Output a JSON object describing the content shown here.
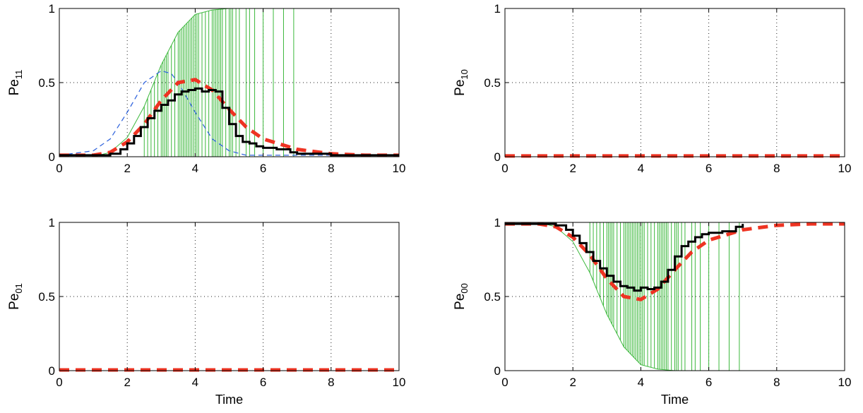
{
  "chart_data": [
    {
      "type": "line",
      "ylabel_base": "Pe",
      "ylabel_sub": "11",
      "xlabel": "",
      "xlim": [
        0,
        10
      ],
      "ylim": [
        0,
        1
      ],
      "xticks": [
        "0",
        "2",
        "4",
        "6",
        "8",
        "10"
      ],
      "yticks": [
        "0",
        "0.5",
        "1"
      ],
      "grid": true,
      "series": [
        {
          "style": "green-envelope",
          "color": "#3cb83c",
          "x": [
            0,
            1,
            1.5,
            2,
            2.5,
            3,
            3.5,
            4,
            4.5,
            5,
            5.5,
            6,
            7
          ],
          "y": [
            0,
            0,
            0.03,
            0.13,
            0.34,
            0.62,
            0.84,
            0.96,
            0.99,
            1,
            1,
            1,
            1
          ]
        },
        {
          "style": "blue-dashed",
          "color": "#3366dd",
          "x": [
            0,
            1,
            1.5,
            2,
            2.5,
            3,
            3.3,
            3.5,
            4,
            4.5,
            5,
            5.5,
            6,
            10
          ],
          "y": [
            0.01,
            0.04,
            0.12,
            0.3,
            0.5,
            0.58,
            0.56,
            0.5,
            0.3,
            0.12,
            0.04,
            0.01,
            0.01,
            0.01
          ]
        },
        {
          "style": "red-dashed",
          "color": "#ee3322",
          "x": [
            0,
            1,
            1.5,
            2,
            2.5,
            3,
            3.5,
            4,
            4.5,
            5,
            5.5,
            6,
            7,
            8,
            9,
            10
          ],
          "y": [
            0.01,
            0.01,
            0.03,
            0.1,
            0.22,
            0.38,
            0.5,
            0.52,
            0.45,
            0.32,
            0.2,
            0.12,
            0.05,
            0.02,
            0.01,
            0.01
          ]
        },
        {
          "style": "black-step",
          "color": "#000000",
          "x": [
            0,
            1.5,
            1.8,
            2,
            2.2,
            2.4,
            2.6,
            2.8,
            3,
            3.2,
            3.4,
            3.6,
            3.8,
            4,
            4.2,
            4.4,
            4.6,
            4.8,
            5,
            5.2,
            5.4,
            5.6,
            5.8,
            6,
            6.4,
            6.8,
            7,
            8,
            10
          ],
          "y": [
            0.01,
            0.02,
            0.05,
            0.09,
            0.14,
            0.2,
            0.26,
            0.31,
            0.35,
            0.38,
            0.42,
            0.44,
            0.45,
            0.46,
            0.44,
            0.45,
            0.44,
            0.33,
            0.22,
            0.14,
            0.1,
            0.09,
            0.07,
            0.06,
            0.05,
            0.03,
            0.02,
            0.01,
            0.01
          ]
        }
      ],
      "green_verticals_x": [
        2.5,
        2.6,
        2.7,
        2.8,
        2.9,
        3.0,
        3.05,
        3.1,
        3.15,
        3.2,
        3.3,
        3.4,
        3.5,
        3.55,
        3.6,
        3.65,
        3.7,
        3.75,
        3.8,
        3.85,
        3.9,
        3.95,
        4.0,
        4.05,
        4.1,
        4.2,
        4.3,
        4.4,
        4.5,
        4.55,
        4.6,
        4.65,
        4.7,
        4.75,
        4.8,
        4.9,
        5.0,
        5.05,
        5.1,
        5.2,
        5.3,
        5.5,
        5.6,
        5.75,
        6.0,
        6.3,
        6.6,
        6.9
      ]
    },
    {
      "type": "line",
      "ylabel_base": "Pe",
      "ylabel_sub": "10",
      "xlabel": "",
      "xlim": [
        0,
        10
      ],
      "ylim": [
        0,
        1
      ],
      "xticks": [
        "0",
        "2",
        "4",
        "6",
        "8",
        "10"
      ],
      "yticks": [
        "0",
        "0.5",
        "1"
      ],
      "grid": true,
      "series": [
        {
          "style": "red-dashed",
          "color": "#ee3322",
          "x": [
            0,
            10
          ],
          "y": [
            0.005,
            0.005
          ]
        }
      ],
      "green_verticals_x": []
    },
    {
      "type": "line",
      "ylabel_base": "Pe",
      "ylabel_sub": "01",
      "xlabel": "Time",
      "xlim": [
        0,
        10
      ],
      "ylim": [
        0,
        1
      ],
      "xticks": [
        "0",
        "2",
        "4",
        "6",
        "8",
        "10"
      ],
      "yticks": [
        "0",
        "0.5",
        "1"
      ],
      "grid": true,
      "series": [
        {
          "style": "red-dashed",
          "color": "#ee3322",
          "x": [
            0,
            10
          ],
          "y": [
            0.005,
            0.005
          ]
        }
      ],
      "green_verticals_x": []
    },
    {
      "type": "line",
      "ylabel_base": "Pe",
      "ylabel_sub": "00",
      "xlabel": "Time",
      "xlim": [
        0,
        10
      ],
      "ylim": [
        0,
        1
      ],
      "xticks": [
        "0",
        "2",
        "4",
        "6",
        "8",
        "10"
      ],
      "yticks": [
        "0",
        "0.5",
        "1"
      ],
      "grid": true,
      "series": [
        {
          "style": "green-envelope",
          "color": "#3cb83c",
          "x": [
            0,
            1,
            1.5,
            2,
            2.5,
            3,
            3.5,
            4,
            4.5,
            5,
            5.3,
            6,
            7
          ],
          "y": [
            1,
            1,
            0.97,
            0.87,
            0.66,
            0.38,
            0.16,
            0.04,
            0.01,
            0,
            0,
            0,
            0
          ]
        },
        {
          "style": "red-dashed",
          "color": "#ee3322",
          "x": [
            0,
            1,
            1.5,
            2,
            2.5,
            3,
            3.5,
            4,
            4.5,
            5,
            5.5,
            6,
            7,
            8,
            9,
            10
          ],
          "y": [
            0.99,
            0.99,
            0.97,
            0.9,
            0.78,
            0.62,
            0.5,
            0.48,
            0.55,
            0.68,
            0.8,
            0.88,
            0.95,
            0.98,
            0.99,
            0.99
          ]
        },
        {
          "style": "black-step",
          "color": "#000000",
          "x": [
            0,
            1.5,
            1.8,
            2,
            2.2,
            2.4,
            2.6,
            2.8,
            3,
            3.2,
            3.4,
            3.6,
            3.8,
            4,
            4.2,
            4.4,
            4.6,
            4.8,
            5,
            5.2,
            5.4,
            5.6,
            5.8,
            6,
            6.4,
            6.8,
            7
          ],
          "y": [
            0.99,
            0.98,
            0.95,
            0.91,
            0.86,
            0.8,
            0.74,
            0.69,
            0.64,
            0.6,
            0.57,
            0.56,
            0.54,
            0.56,
            0.55,
            0.56,
            0.6,
            0.68,
            0.77,
            0.84,
            0.87,
            0.9,
            0.92,
            0.93,
            0.94,
            0.97,
            0.99
          ]
        }
      ],
      "green_verticals_x": [
        2.5,
        2.6,
        2.7,
        2.8,
        2.9,
        3.0,
        3.05,
        3.1,
        3.15,
        3.2,
        3.3,
        3.4,
        3.5,
        3.55,
        3.6,
        3.65,
        3.7,
        3.75,
        3.8,
        3.85,
        3.9,
        3.95,
        4.0,
        4.05,
        4.1,
        4.2,
        4.3,
        4.4,
        4.5,
        4.55,
        4.6,
        4.65,
        4.7,
        4.75,
        4.8,
        4.9,
        5.0,
        5.05,
        5.1,
        5.2,
        5.3,
        5.5,
        5.6,
        5.75,
        6.0,
        6.3,
        6.6,
        6.9
      ]
    }
  ]
}
